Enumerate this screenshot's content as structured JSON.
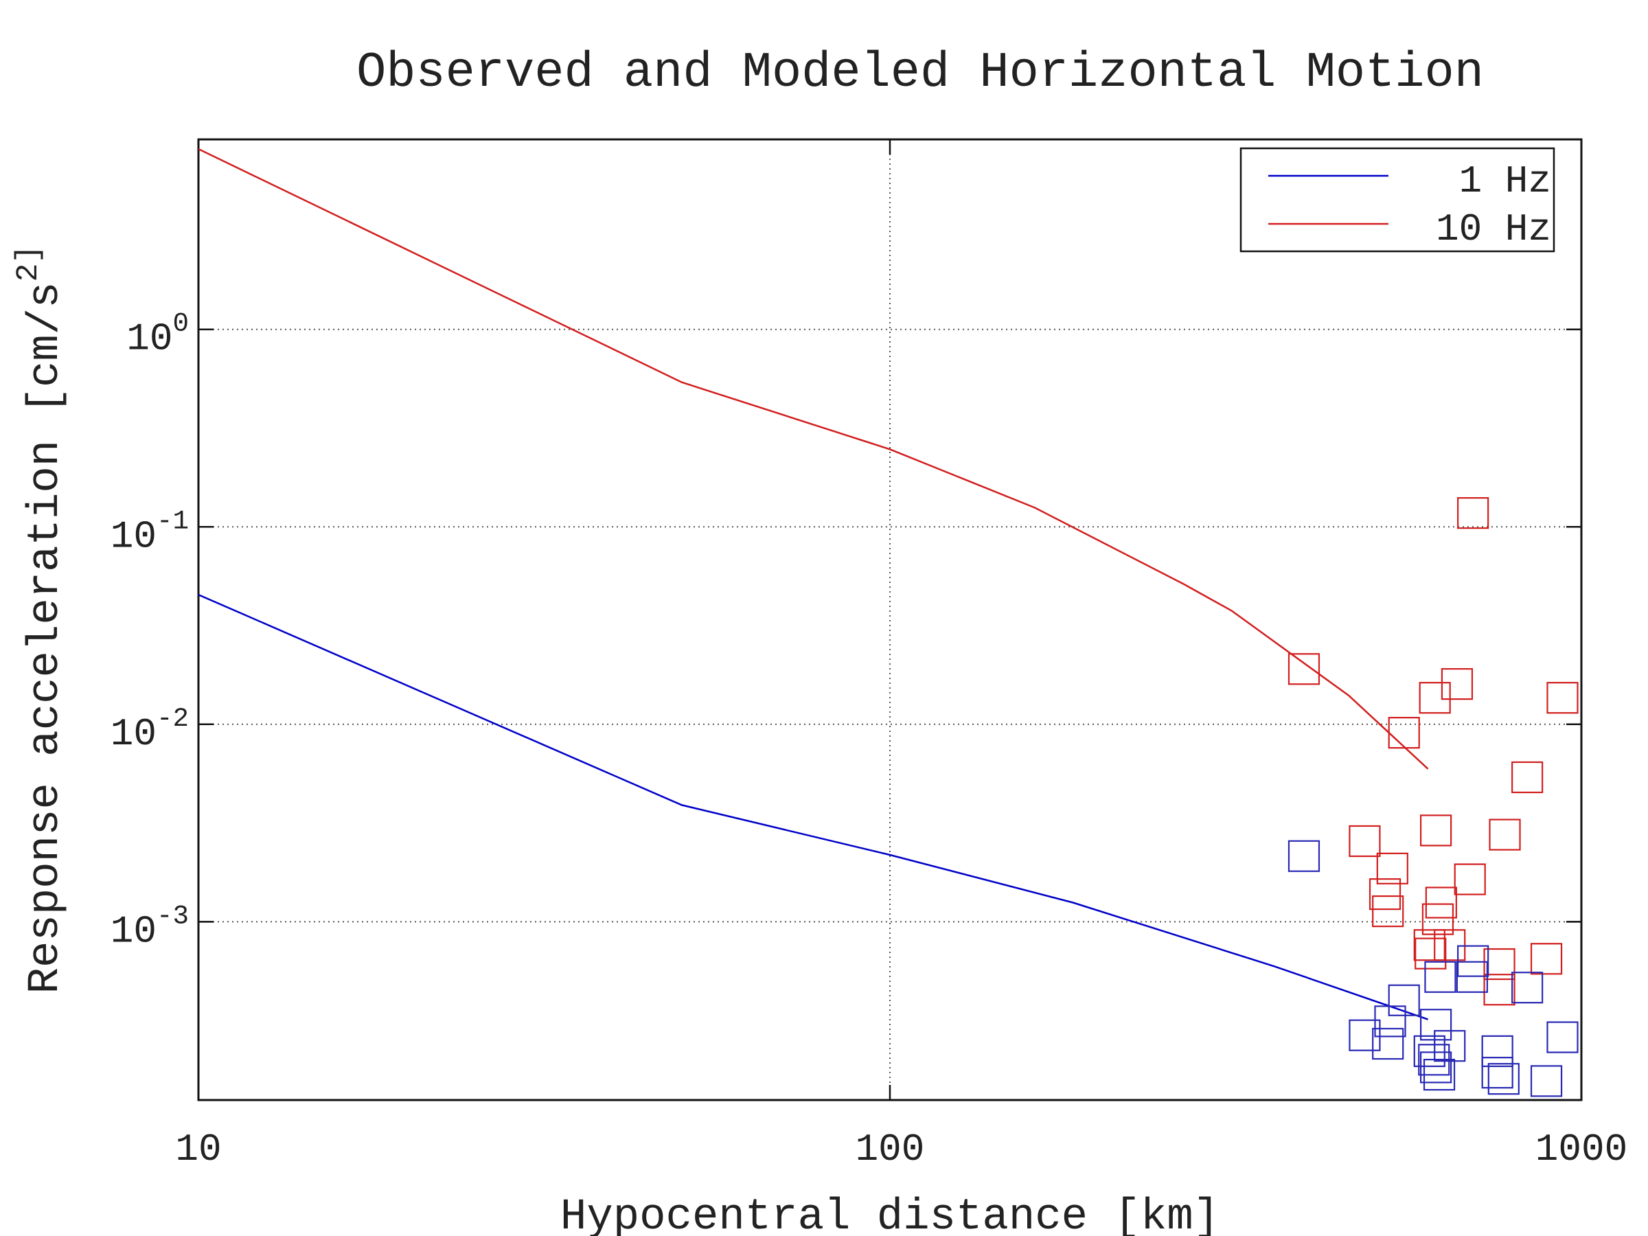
{
  "chart_data": {
    "type": "line",
    "title": "Observed and Modeled Horizontal Motion",
    "xlabel": "Hypocentral distance [km]",
    "ylabel": "Response acceleration [cm/s^2]",
    "xscale": "log",
    "yscale": "log",
    "xlim": [
      10,
      1000
    ],
    "ylim": [
      0.000125,
      9.17
    ],
    "xticks": [
      10,
      100,
      1000
    ],
    "yticks": [
      {
        "value": 1,
        "label": "10^0"
      },
      {
        "value": 0.1,
        "label": "10^-1"
      },
      {
        "value": 0.01,
        "label": "10^-2"
      },
      {
        "value": 0.001,
        "label": "10^-3"
      }
    ],
    "grid": true,
    "legend": "upper right",
    "series": [
      {
        "name": "1 Hz",
        "type": "line",
        "color": "#0000c8",
        "x": [
          10,
          50,
          100,
          184,
          360,
          600
        ],
        "values": [
          0.0453,
          0.0039,
          0.00218,
          0.00125,
          0.000594,
          0.00032
        ]
      },
      {
        "name": "10 Hz",
        "type": "line",
        "color": "#d21e1e",
        "x": [
          10,
          50,
          100,
          162,
          266,
          312,
          461,
          600
        ],
        "values": [
          8.2,
          0.54,
          0.247,
          0.125,
          0.0513,
          0.0376,
          0.01397,
          0.00594
        ]
      },
      {
        "type": "scatter",
        "color": "#d21e1e",
        "x": [
          397,
          697,
          554,
          614,
          661,
          939,
          835,
          616,
          775,
          486,
          533,
          690,
          520,
          627,
          525,
          620,
          603,
          605,
          645,
          761,
          890,
          761
        ],
        "values": [
          0.01905,
          0.1175,
          0.00906,
          0.01362,
          0.016,
          0.01362,
          0.00539,
          0.0029,
          0.00276,
          0.00256,
          0.00186,
          0.00164,
          0.00138,
          0.00125,
          0.00113,
          0.00103,
          0.000762,
          0.00069,
          0.000762,
          0.00061,
          0.000649,
          0.000453
        ]
      },
      {
        "type": "scatter",
        "color": "#2828b4",
        "x": [
          397,
          554,
          529,
          486,
          525,
          616,
          645,
          603,
          612,
          616,
          623,
          697,
          695,
          835,
          756,
          756,
          772,
          890,
          939,
          625
        ],
        "values": [
          0.00215,
          0.0004,
          0.000313,
          0.000266,
          0.000241,
          0.000301,
          0.000235,
          0.000221,
          0.0002,
          0.000183,
          0.000168,
          0.000632,
          0.000525,
          0.000464,
          0.000221,
          0.000172,
          0.00016,
          0.000156,
          0.00026,
          0.000525
        ]
      }
    ]
  }
}
